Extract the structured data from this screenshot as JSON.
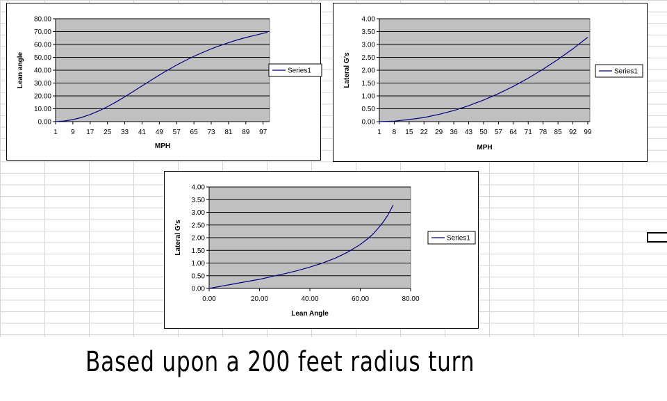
{
  "sheet": {
    "caption": "Based upon a 200 feet radius turn"
  },
  "colors": {
    "plot_area": "#c0c0c0",
    "gridline": "#000000",
    "series_line": "#000080",
    "frame": "#000000"
  },
  "chart_data": [
    {
      "type": "line",
      "title": "",
      "xlabel": "MPH",
      "ylabel": "Lean angle",
      "categories": [
        "1",
        "9",
        "17",
        "25",
        "33",
        "41",
        "49",
        "57",
        "65",
        "73",
        "81",
        "89",
        "97"
      ],
      "yticks": [
        "0.00",
        "10.00",
        "20.00",
        "30.00",
        "40.00",
        "50.00",
        "60.00",
        "70.00",
        "80.00"
      ],
      "ylim": [
        0,
        80
      ],
      "xlim": [
        1,
        100
      ],
      "grid": "horizontal",
      "legend_position": "right",
      "series": [
        {
          "name": "Series1",
          "x": [
            1,
            5,
            9,
            13,
            17,
            21,
            25,
            29,
            33,
            37,
            41,
            45,
            49,
            53,
            57,
            61,
            65,
            69,
            73,
            77,
            81,
            85,
            89,
            93,
            97,
            99
          ],
          "y": [
            0.02,
            0.48,
            1.55,
            3.23,
            5.5,
            8.3,
            11.6,
            15.3,
            19.3,
            23.5,
            27.8,
            32.0,
            36.2,
            40.2,
            44.0,
            47.5,
            50.8,
            53.8,
            56.6,
            59.1,
            61.4,
            63.5,
            65.4,
            67.1,
            68.7,
            69.4
          ]
        }
      ]
    },
    {
      "type": "line",
      "title": "",
      "xlabel": "MPH",
      "ylabel": "Lateral G's",
      "categories": [
        "1",
        "8",
        "15",
        "22",
        "29",
        "36",
        "43",
        "50",
        "57",
        "64",
        "71",
        "78",
        "85",
        "92",
        "99"
      ],
      "yticks": [
        "0.00",
        "0.50",
        "1.00",
        "1.50",
        "2.00",
        "2.50",
        "3.00",
        "3.50",
        "4.00"
      ],
      "ylim": [
        0,
        4
      ],
      "xlim": [
        1,
        100
      ],
      "grid": "horizontal",
      "legend_position": "right",
      "series": [
        {
          "name": "Series1",
          "x": [
            1,
            8,
            15,
            22,
            29,
            36,
            43,
            50,
            57,
            64,
            71,
            78,
            85,
            92,
            99
          ],
          "y": [
            0.0,
            0.02,
            0.08,
            0.16,
            0.28,
            0.43,
            0.62,
            0.84,
            1.09,
            1.37,
            1.69,
            2.04,
            2.42,
            2.83,
            3.28
          ]
        }
      ]
    },
    {
      "type": "scatter",
      "title": "",
      "xlabel": "Lean Angle",
      "ylabel": "Lateral G's",
      "xticks": [
        "0.00",
        "20.00",
        "40.00",
        "60.00",
        "80.00"
      ],
      "yticks": [
        "0.00",
        "0.50",
        "1.00",
        "1.50",
        "2.00",
        "2.50",
        "3.00",
        "3.50",
        "4.00"
      ],
      "xlim": [
        0,
        80
      ],
      "ylim": [
        0,
        4
      ],
      "grid": "horizontal",
      "legend_position": "right",
      "series": [
        {
          "name": "Series1",
          "x": [
            0,
            5,
            10,
            15,
            20,
            25,
            30,
            35,
            40,
            45,
            50,
            55,
            60,
            63,
            65,
            67,
            69,
            71,
            72,
            73
          ],
          "y": [
            0.0,
            0.09,
            0.18,
            0.27,
            0.36,
            0.47,
            0.58,
            0.7,
            0.84,
            1.0,
            1.19,
            1.43,
            1.73,
            1.96,
            2.14,
            2.36,
            2.6,
            2.9,
            3.08,
            3.28
          ]
        }
      ]
    }
  ]
}
